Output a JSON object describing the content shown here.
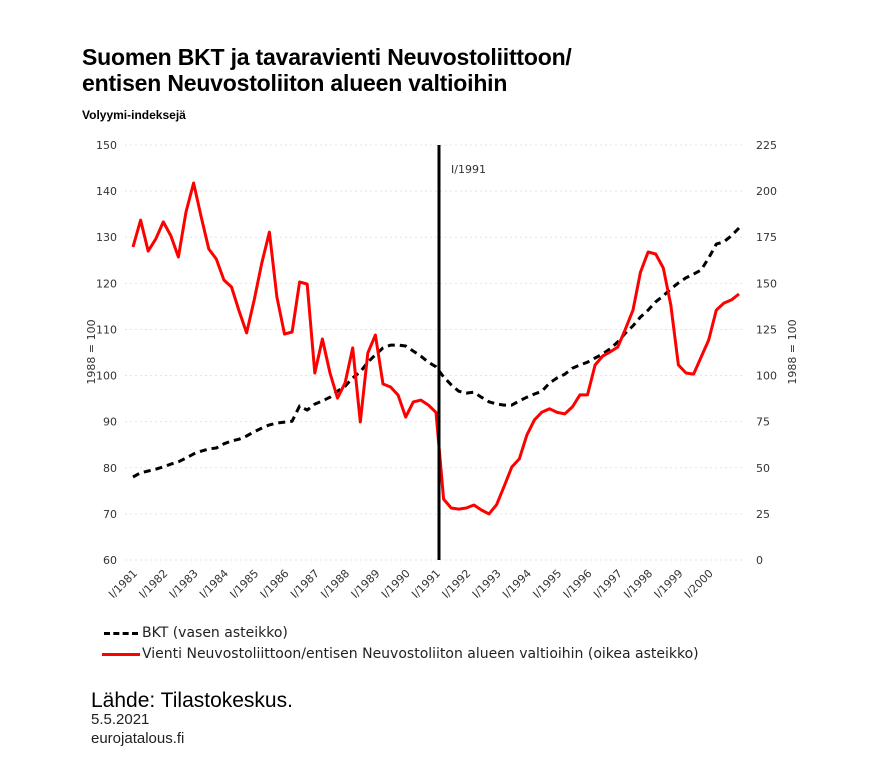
{
  "chart_data": {
    "type": "line",
    "title": "Suomen BKT ja tavaravienti Neuvostoliittoon/ entisen Neuvostoliiton alueen valtioihin",
    "title_lines": [
      "Suomen BKT ja tavaravienti Neuvostoliittoon/",
      "entisen Neuvostoliiton alueen valtioihin"
    ],
    "subtitle": "Volyymi-indeksejä",
    "xlabel": "",
    "ylabel_left": "1988 = 100",
    "ylabel_right": "1988 = 100",
    "ylim_left": [
      60,
      150
    ],
    "ylim_right": [
      0,
      225
    ],
    "yticks_left": [
      "60",
      "70",
      "80",
      "90",
      "100",
      "110",
      "120",
      "130",
      "140",
      "150"
    ],
    "yticks_right": [
      "0",
      "25",
      "50",
      "75",
      "100",
      "125",
      "150",
      "175",
      "200",
      "225"
    ],
    "x_frequency": "quarterly",
    "x_start": "I/1981",
    "x_end": "I/2001",
    "x_tick_labels": [
      "I/1981",
      "I/1982",
      "I/1983",
      "I/1984",
      "I/1985",
      "I/1986",
      "I/1987",
      "I/1988",
      "I/1989",
      "I/1990",
      "I/1991",
      "I/1992",
      "I/1993",
      "I/1994",
      "I/1995",
      "I/1996",
      "I/1997",
      "I/1998",
      "I/1999",
      "I/2000"
    ],
    "grid": true,
    "annotations": [
      {
        "type": "vertical-line",
        "at": "I/1991",
        "label": "I/1991"
      }
    ],
    "legend_position": "bottom",
    "series": [
      {
        "name": "BKT (vasen asteikko)",
        "axis": "left",
        "color": "#000000",
        "style": "dashed",
        "values": [
          78.0,
          78.9,
          79.3,
          79.7,
          80.2,
          80.8,
          81.3,
          82.1,
          83.0,
          83.6,
          84.1,
          84.3,
          85.2,
          85.8,
          86.2,
          86.9,
          87.8,
          88.6,
          89.3,
          89.7,
          89.9,
          90.1,
          93.4,
          92.5,
          93.8,
          94.5,
          95.3,
          96.6,
          97.7,
          99.5,
          100.8,
          102.9,
          104.5,
          106.0,
          106.6,
          106.6,
          106.4,
          105.3,
          104.2,
          102.9,
          101.9,
          99.7,
          98.0,
          96.6,
          96.2,
          96.4,
          95.3,
          94.3,
          93.8,
          93.6,
          93.6,
          94.5,
          95.3,
          96.0,
          96.6,
          98.4,
          99.5,
          100.3,
          101.6,
          102.3,
          102.9,
          103.8,
          104.7,
          105.8,
          107.3,
          109.2,
          110.8,
          112.7,
          114.2,
          116.0,
          117.3,
          118.8,
          120.1,
          121.2,
          122.0,
          122.9,
          125.5,
          128.5,
          129.0,
          130.3,
          132.0
        ]
      },
      {
        "name": "Vienti Neuvostoliittoon/entisen Neuvostoliiton alueen valtioihin (oikea asteikko)",
        "axis": "right",
        "color": "#ff0000",
        "style": "solid",
        "values": [
          169.7,
          184.3,
          167.5,
          174.0,
          183.3,
          175.7,
          164.3,
          188.7,
          204.4,
          186.0,
          168.6,
          163.2,
          151.8,
          148.0,
          135.0,
          123.1,
          141.0,
          161.0,
          177.8,
          142.6,
          122.5,
          123.6,
          150.7,
          149.6,
          101.4,
          119.8,
          101.4,
          87.8,
          96.0,
          115.0,
          74.8,
          112.2,
          122.0,
          95.4,
          93.8,
          89.4,
          77.5,
          85.7,
          86.7,
          84.0,
          80.0,
          33.0,
          28.2,
          27.6,
          28.2,
          29.8,
          27.1,
          25.0,
          30.0,
          40.0,
          50.4,
          54.8,
          67.8,
          76.0,
          80.2,
          82.0,
          80.0,
          79.2,
          83.0,
          89.5,
          89.5,
          105.7,
          110.6,
          112.8,
          115.5,
          125.2,
          135.5,
          156.1,
          167.0,
          165.9,
          158.3,
          138.3,
          105.7,
          101.4,
          100.8,
          110.0,
          119.3,
          135.5,
          139.3,
          141.0,
          144.2
        ]
      }
    ]
  },
  "legend": {
    "items": [
      {
        "label": "BKT (vasen asteikko)",
        "color": "#000000",
        "style": "dashed"
      },
      {
        "label": "Vienti Neuvostoliittoon/entisen Neuvostoliiton alueen valtioihin (oikea asteikko)",
        "color": "#ff0000",
        "style": "solid"
      }
    ]
  },
  "footer": {
    "source": "Lähde: Tilastokeskus.",
    "date": "5.5.2021",
    "site": "eurojatalous.fi"
  }
}
